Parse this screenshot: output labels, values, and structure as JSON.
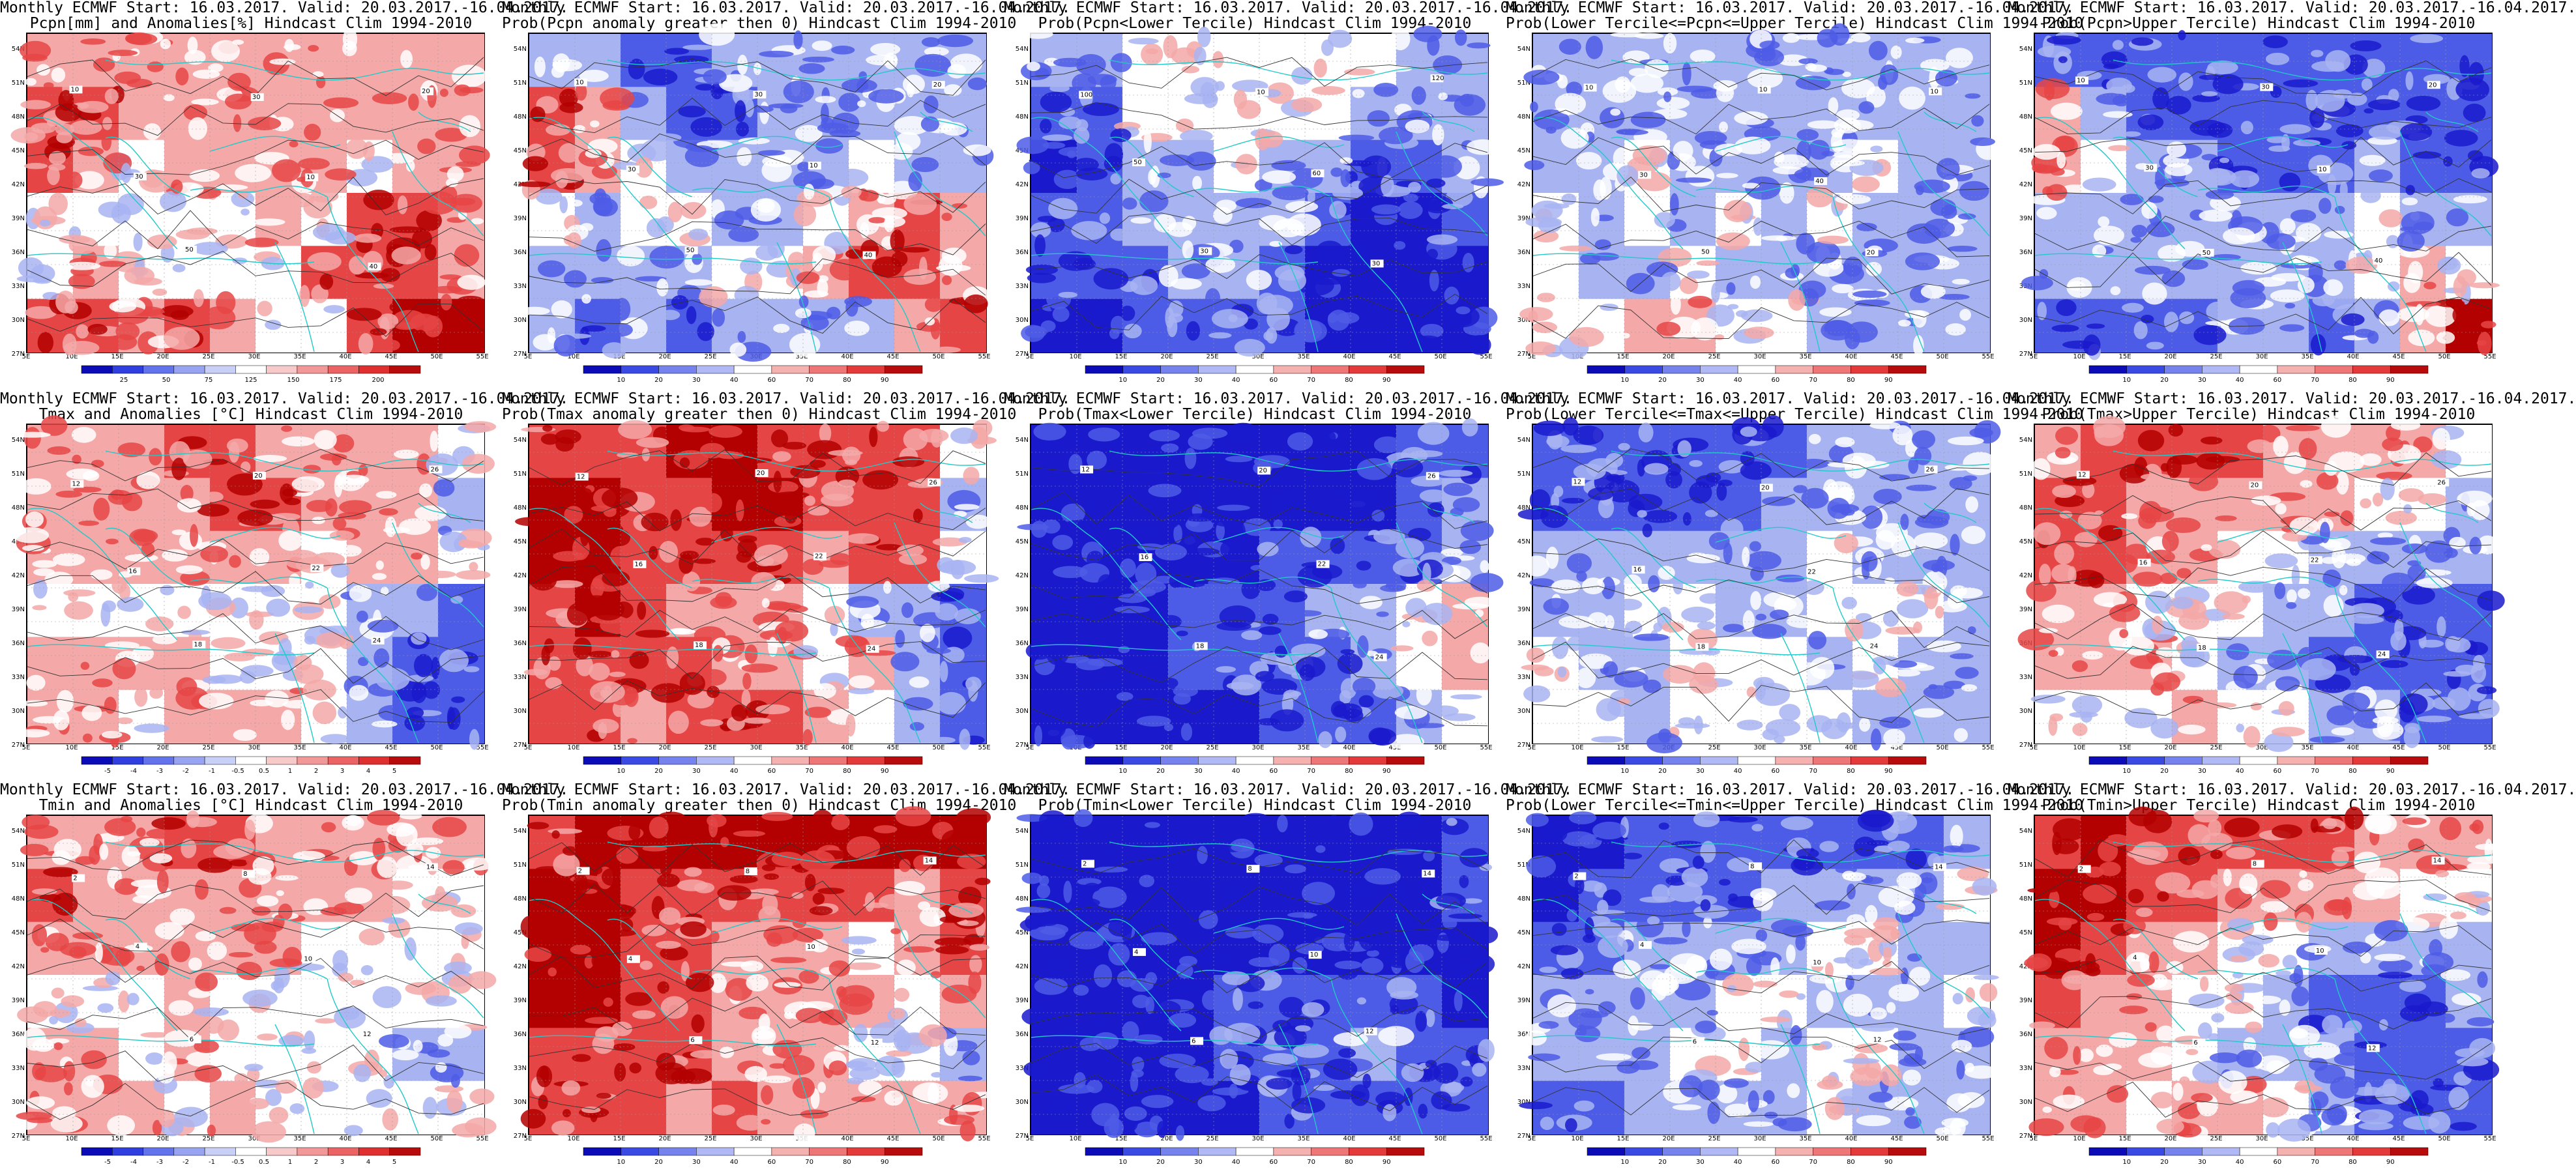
{
  "xticks": [
    "5E",
    "10E",
    "15E",
    "20E",
    "25E",
    "30E",
    "35E",
    "40E",
    "45E",
    "50E",
    "55E"
  ],
  "yticks": [
    "54N",
    "51N",
    "48N",
    "45N",
    "42N",
    "39N",
    "36N",
    "33N",
    "30N",
    "27N"
  ],
  "colors": {
    "coast": "#22c9c9",
    "contour": "#333333",
    "frame": "#000000"
  },
  "panels": [
    {
      "title1": "Monthly ECMWF Start: 16.03.2017. Valid: 20.03.2017.-16.04.2017.",
      "title2": "Pcpn[mm] and Anomalies[%] Hindcast Clim 1994-2010",
      "scheme": "anom",
      "cbar": [
        "25",
        "50",
        "75",
        "125",
        "150",
        "175",
        "200"
      ],
      "contour_labels": [
        "10",
        "30",
        "50",
        "30",
        "10",
        "40",
        "20"
      ],
      "pattern": [
        1,
        1,
        1,
        1,
        1,
        1,
        1,
        1,
        1,
        1,
        2,
        2,
        1,
        1,
        1,
        1,
        1,
        1,
        1,
        1,
        2,
        1,
        0,
        1,
        1,
        1,
        1,
        0,
        1,
        1,
        0,
        0,
        0,
        0,
        0,
        1,
        0,
        2,
        2,
        1,
        0,
        1,
        0,
        0,
        0,
        0,
        2,
        2,
        2,
        1,
        2,
        2,
        1,
        2,
        1,
        0,
        0,
        2,
        3,
        3
      ]
    },
    {
      "title1": "Monthly ECMWF Start: 16.03.2017. Valid: 20.03.2017.-16.04.2017.",
      "title2": "Prob(Pcpn anomaly greater then 0) Hindcast Clim 1994-2010",
      "scheme": "prob",
      "cbar": [
        "10",
        "20",
        "30",
        "40",
        "60",
        "70",
        "80",
        "90"
      ],
      "contour_labels": [
        "10",
        "30",
        "50",
        "30",
        "10",
        "40",
        "20"
      ],
      "pattern": [
        -1,
        -1,
        -2,
        -2,
        -1,
        -1,
        -1,
        -1,
        -1,
        -1,
        2,
        1,
        -1,
        -2,
        -2,
        -1,
        -1,
        -1,
        -1,
        -1,
        2,
        1,
        0,
        -1,
        -1,
        -1,
        -1,
        0,
        -1,
        -1,
        0,
        -1,
        0,
        0,
        -1,
        -1,
        0,
        1,
        2,
        1,
        -1,
        -1,
        -1,
        -1,
        0,
        0,
        1,
        2,
        2,
        1,
        -1,
        -2,
        -1,
        -2,
        -1,
        -1,
        -1,
        -1,
        1,
        2
      ]
    },
    {
      "title1": "Monthly ECMWF Start: 16.03.2017. Valid: 20.03.2017.-16.04.2017.",
      "title2": "Prob(Pcpn<Lower Tercile) Hindcast Clim 1994-2010",
      "scheme": "prob",
      "cbar": [
        "10",
        "20",
        "30",
        "40",
        "60",
        "70",
        "80",
        "90"
      ],
      "contour_labels": [
        "100",
        "50",
        "30",
        "10",
        "60",
        "30",
        "120"
      ],
      "pattern": [
        -1,
        -1,
        0,
        0,
        0,
        0,
        0,
        0,
        -1,
        -1,
        -2,
        -2,
        0,
        0,
        0,
        0,
        0,
        -1,
        -1,
        -1,
        -3,
        -2,
        -1,
        -1,
        0,
        -1,
        -1,
        -2,
        -2,
        -1,
        -2,
        -2,
        -1,
        -1,
        -1,
        -1,
        -2,
        -3,
        -3,
        -2,
        -2,
        -2,
        -2,
        -1,
        -1,
        -2,
        -3,
        -3,
        -3,
        -3,
        -3,
        -3,
        -2,
        -2,
        -2,
        -2,
        -3,
        -3,
        -3,
        -3
      ]
    },
    {
      "title1": "Monthly ECMWF Start: 16.03.2017. Valid: 20.03.2017.-16.04.2017.",
      "title2": "Prob(Lower Tercile<=Pcpn<=Upper Tercile) Hindcast Clim 1994-2010",
      "scheme": "prob",
      "cbar": [
        "10",
        "20",
        "30",
        "40",
        "60",
        "70",
        "80",
        "90"
      ],
      "contour_labels": [
        "10",
        "30",
        "50",
        "10",
        "40",
        "20",
        "10"
      ],
      "pattern": [
        -1,
        -1,
        -1,
        -1,
        -1,
        -1,
        -1,
        -1,
        -1,
        -1,
        -1,
        -1,
        -1,
        -1,
        -1,
        -1,
        -1,
        -1,
        -1,
        -1,
        -1,
        -1,
        0,
        -1,
        -1,
        -1,
        -1,
        0,
        -1,
        -1,
        0,
        -1,
        0,
        -1,
        0,
        -1,
        0,
        -1,
        -1,
        -1,
        0,
        -1,
        -1,
        0,
        -1,
        -1,
        -1,
        -1,
        -1,
        -1,
        0,
        0,
        1,
        1,
        0,
        0,
        -1,
        -1,
        -1,
        -1
      ]
    },
    {
      "title1": "Monthly ECMWF Start: 16.03.2017. Valid: 20.03.2017.-16.04.2017.",
      "title2": "Prob(Pcpn>Upper Tercile) Hindcast Clim 1994-2010",
      "scheme": "prob",
      "cbar": [
        "10",
        "20",
        "30",
        "40",
        "60",
        "70",
        "80",
        "90"
      ],
      "contour_labels": [
        "10",
        "30",
        "50",
        "30",
        "10",
        "40",
        "20"
      ],
      "pattern": [
        -2,
        -2,
        -2,
        -2,
        -2,
        -2,
        -2,
        -2,
        -2,
        -2,
        1,
        -1,
        -2,
        -2,
        -2,
        -2,
        -2,
        -2,
        -2,
        -2,
        1,
        0,
        -1,
        -1,
        -2,
        -2,
        -2,
        -1,
        -2,
        -2,
        -1,
        -1,
        -1,
        -1,
        -1,
        -1,
        -1,
        0,
        -1,
        -1,
        -1,
        -1,
        -1,
        -1,
        -1,
        -1,
        -1,
        0,
        1,
        0,
        -2,
        -2,
        -2,
        -2,
        -1,
        -1,
        -2,
        -1,
        1,
        3
      ]
    },
    {
      "title1": "Monthly ECMWF Start: 16.03.2017. Valid: 20.03.2017.-16.04.2017.",
      "title2": "Tmax and Anomalies [°C] Hindcast Clim 1994-2010",
      "scheme": "anom",
      "cbar": [
        "-5",
        "-4",
        "-3",
        "-2",
        "-1",
        "-0.5",
        "0.5",
        "1",
        "2",
        "3",
        "4",
        "5"
      ],
      "contour_labels": [
        "12",
        "16",
        "18",
        "20",
        "22",
        "24",
        "26"
      ],
      "pattern": [
        1,
        1,
        1,
        2,
        2,
        1,
        1,
        1,
        1,
        0,
        1,
        1,
        1,
        1,
        2,
        2,
        1,
        1,
        1,
        -1,
        1,
        1,
        1,
        1,
        1,
        1,
        0,
        1,
        1,
        0,
        0,
        0,
        0,
        0,
        0,
        0,
        0,
        -1,
        -1,
        -2,
        1,
        1,
        1,
        1,
        0,
        0,
        0,
        -1,
        -2,
        -2,
        1,
        1,
        0,
        1,
        1,
        1,
        0,
        -1,
        -2,
        -2
      ]
    },
    {
      "title1": "Monthly ECMWF Start: 16.03.2017. Valid: 20.03.2017.-16.04.2017.",
      "title2": "Prob(Tmax anomaly greater then 0) Hindcast Clim 1994-2010",
      "scheme": "prob",
      "cbar": [
        "10",
        "20",
        "30",
        "40",
        "60",
        "70",
        "80",
        "90"
      ],
      "contour_labels": [
        "12",
        "16",
        "18",
        "20",
        "22",
        "24",
        "26"
      ],
      "pattern": [
        2,
        2,
        2,
        3,
        3,
        2,
        2,
        2,
        2,
        0,
        3,
        3,
        2,
        2,
        3,
        3,
        2,
        2,
        2,
        -1,
        3,
        3,
        2,
        2,
        2,
        2,
        1,
        2,
        2,
        0,
        2,
        3,
        2,
        1,
        1,
        1,
        0,
        -1,
        -1,
        -2,
        2,
        2,
        2,
        2,
        1,
        1,
        0,
        1,
        -1,
        -2,
        2,
        2,
        1,
        2,
        2,
        2,
        1,
        0,
        -1,
        -2
      ]
    },
    {
      "title1": "Monthly ECMWF Start: 16.03.2017. Valid: 20.03.2017.-16.04.2017.",
      "title2": "Prob(Tmax<Lower Tercile) Hindcast Clim 1994-2010",
      "scheme": "prob",
      "cbar": [
        "10",
        "20",
        "30",
        "40",
        "60",
        "70",
        "80",
        "90"
      ],
      "contour_labels": [
        "12",
        "16",
        "18",
        "20",
        "22",
        "24",
        "26"
      ],
      "pattern": [
        -3,
        -3,
        -3,
        -3,
        -3,
        -3,
        -3,
        -3,
        -2,
        -2,
        -3,
        -3,
        -3,
        -3,
        -3,
        -3,
        -3,
        -3,
        -2,
        -1,
        -3,
        -3,
        -3,
        -3,
        -3,
        -2,
        -2,
        -2,
        -2,
        -1,
        -3,
        -3,
        -3,
        -2,
        -2,
        -2,
        -1,
        -1,
        0,
        1,
        -3,
        -3,
        -3,
        -2,
        -2,
        -2,
        -2,
        -1,
        0,
        1,
        -3,
        -3,
        -3,
        -3,
        -3,
        -2,
        -2,
        -2,
        -1,
        0
      ]
    },
    {
      "title1": "Monthly ECMWF Start: 16.03.2017. Valid: 20.03.2017.-16.04.2017.",
      "title2": "Prob(Lower Tercile<=Tmax<=Upper Tercile) Hindcast Clim 1994-2010",
      "scheme": "prob",
      "cbar": [
        "10",
        "20",
        "30",
        "40",
        "60",
        "70",
        "80",
        "90"
      ],
      "contour_labels": [
        "12",
        "16",
        "18",
        "20",
        "22",
        "24",
        "26"
      ],
      "pattern": [
        -2,
        -2,
        -2,
        -2,
        -2,
        -2,
        -1,
        -1,
        -1,
        -1,
        -2,
        -2,
        -2,
        -2,
        -2,
        -1,
        -1,
        -1,
        -1,
        -1,
        -1,
        -1,
        -1,
        -1,
        -1,
        -1,
        0,
        -1,
        -1,
        -1,
        -1,
        -1,
        0,
        0,
        -1,
        -1,
        0,
        0,
        0,
        -1,
        0,
        -1,
        -1,
        0,
        0,
        0,
        -1,
        0,
        -1,
        -1,
        0,
        0,
        -1,
        0,
        0,
        0,
        0,
        -1,
        -1,
        -1
      ]
    },
    {
      "title1": "Monthly ECMWF Start: 16.03.2017. Valid: 20.03.2017.-16.04.2017.",
      "title2": "Prob(Tmax>Upper Tercile) Hindcast Clim 1994-2010",
      "scheme": "prob",
      "cbar": [
        "10",
        "20",
        "30",
        "40",
        "60",
        "70",
        "80",
        "90"
      ],
      "contour_labels": [
        "12",
        "16",
        "18",
        "20",
        "22",
        "24",
        "26"
      ],
      "pattern": [
        1,
        2,
        2,
        2,
        2,
        1,
        1,
        1,
        1,
        0,
        2,
        2,
        1,
        1,
        1,
        1,
        1,
        0,
        0,
        -1,
        2,
        2,
        1,
        1,
        0,
        0,
        -1,
        -1,
        -1,
        -1,
        1,
        1,
        0,
        0,
        0,
        -1,
        -1,
        -2,
        -2,
        -2,
        1,
        1,
        1,
        0,
        -1,
        -1,
        -2,
        -2,
        -2,
        -2,
        0,
        0,
        0,
        1,
        0,
        0,
        -1,
        -1,
        -2,
        -2
      ]
    },
    {
      "title1": "Monthly ECMWF Start: 16.03.2017. Valid: 20.03.2017.-16.04.2017.",
      "title2": "Tmin and Anomalies [°C] Hindcast Clim 1994-2010",
      "scheme": "anom",
      "cbar": [
        "-5",
        "-4",
        "-3",
        "-2",
        "-1",
        "-0.5",
        "0.5",
        "1",
        "2",
        "3",
        "4",
        "5"
      ],
      "contour_labels": [
        "2",
        "4",
        "6",
        "8",
        "10",
        "12",
        "14"
      ],
      "pattern": [
        1,
        1,
        1,
        2,
        2,
        1,
        1,
        1,
        1,
        1,
        2,
        1,
        1,
        1,
        1,
        1,
        1,
        1,
        0,
        0,
        1,
        1,
        1,
        1,
        1,
        1,
        0,
        0,
        0,
        0,
        0,
        0,
        0,
        1,
        0,
        0,
        0,
        0,
        0,
        0,
        1,
        1,
        0,
        1,
        0,
        0,
        0,
        0,
        -1,
        -1,
        1,
        1,
        1,
        0,
        1,
        0,
        0,
        0,
        0,
        0
      ]
    },
    {
      "title1": "Monthly ECMWF Start: 16.03.2017. Valid: 20.03.2017.-16.04.2017.",
      "title2": "Prob(Tmin anomaly greater then 0) Hindcast Clim 1994-2010",
      "scheme": "prob",
      "cbar": [
        "10",
        "20",
        "30",
        "40",
        "60",
        "70",
        "80",
        "90"
      ],
      "contour_labels": [
        "2",
        "4",
        "6",
        "8",
        "10",
        "12",
        "14"
      ],
      "pattern": [
        2,
        3,
        3,
        3,
        3,
        3,
        3,
        3,
        3,
        3,
        3,
        3,
        2,
        2,
        2,
        2,
        2,
        2,
        1,
        2,
        3,
        3,
        2,
        2,
        1,
        1,
        1,
        0,
        1,
        2,
        3,
        3,
        2,
        2,
        1,
        1,
        1,
        1,
        0,
        1,
        2,
        2,
        2,
        2,
        1,
        1,
        1,
        0,
        0,
        -1,
        2,
        2,
        2,
        1,
        2,
        1,
        1,
        1,
        1,
        1
      ]
    },
    {
      "title1": "Monthly ECMWF Start: 16.03.2017. Valid: 20.03.2017.-16.04.2017.",
      "title2": "Prob(Tmin<Lower Tercile) Hindcast Clim 1994-2010",
      "scheme": "prob",
      "cbar": [
        "10",
        "20",
        "30",
        "40",
        "60",
        "70",
        "80",
        "90"
      ],
      "contour_labels": [
        "2",
        "4",
        "6",
        "8",
        "10",
        "12",
        "14"
      ],
      "pattern": [
        -3,
        -3,
        -3,
        -3,
        -3,
        -3,
        -3,
        -3,
        -3,
        -2,
        -3,
        -3,
        -3,
        -3,
        -3,
        -3,
        -3,
        -3,
        -3,
        -2,
        -3,
        -3,
        -3,
        -3,
        -3,
        -3,
        -3,
        -3,
        -3,
        -3,
        -3,
        -3,
        -3,
        -3,
        -2,
        -2,
        -2,
        -2,
        -2,
        -3,
        -3,
        -3,
        -3,
        -3,
        -2,
        -2,
        -2,
        -1,
        -2,
        -2,
        -3,
        -3,
        -3,
        -3,
        -3,
        -2,
        -2,
        -2,
        -2,
        -2
      ]
    },
    {
      "title1": "Monthly ECMWF Start: 16.03.2017. Valid: 20.03.2017.-16.04.2017.",
      "title2": "Prob(Lower Tercile<=Tmin<=Upper Tercile) Hindcast Clim 1994-2010",
      "scheme": "prob",
      "cbar": [
        "10",
        "20",
        "30",
        "40",
        "60",
        "70",
        "80",
        "90"
      ],
      "contour_labels": [
        "2",
        "4",
        "6",
        "8",
        "10",
        "12",
        "14"
      ],
      "pattern": [
        -3,
        -3,
        -2,
        -2,
        -2,
        -2,
        -2,
        -2,
        -2,
        -1,
        -3,
        -2,
        -2,
        -2,
        -2,
        -1,
        -1,
        -1,
        -1,
        0,
        -2,
        -2,
        -1,
        -1,
        -1,
        -1,
        0,
        0,
        -1,
        -1,
        -1,
        -1,
        -1,
        -1,
        0,
        0,
        -1,
        -1,
        -1,
        0,
        -1,
        -1,
        -1,
        0,
        0,
        -1,
        0,
        0,
        -1,
        -1,
        -2,
        -2,
        -1,
        -1,
        -1,
        -1,
        0,
        -1,
        -1,
        -1
      ]
    },
    {
      "title1": "Monthly ECMWF Start: 16.03.2017. Valid: 20.03.2017.-16.04.2017.",
      "title2": "Prob(Tmin>Upper Tercile) Hindcast Clim 1994-2010",
      "scheme": "prob",
      "cbar": [
        "10",
        "20",
        "30",
        "40",
        "60",
        "70",
        "80",
        "90"
      ],
      "contour_labels": [
        "2",
        "4",
        "6",
        "8",
        "10",
        "12",
        "14"
      ],
      "pattern": [
        2,
        3,
        2,
        2,
        2,
        2,
        2,
        1,
        1,
        1,
        3,
        3,
        2,
        2,
        1,
        1,
        1,
        1,
        0,
        0,
        3,
        2,
        1,
        1,
        0,
        0,
        -1,
        -1,
        -1,
        -1,
        2,
        1,
        1,
        0,
        0,
        -1,
        -2,
        -2,
        -2,
        -1,
        1,
        1,
        1,
        0,
        -1,
        -1,
        -1,
        -2,
        -2,
        -2,
        1,
        1,
        0,
        1,
        1,
        0,
        -1,
        -2,
        -2,
        -2
      ]
    }
  ]
}
